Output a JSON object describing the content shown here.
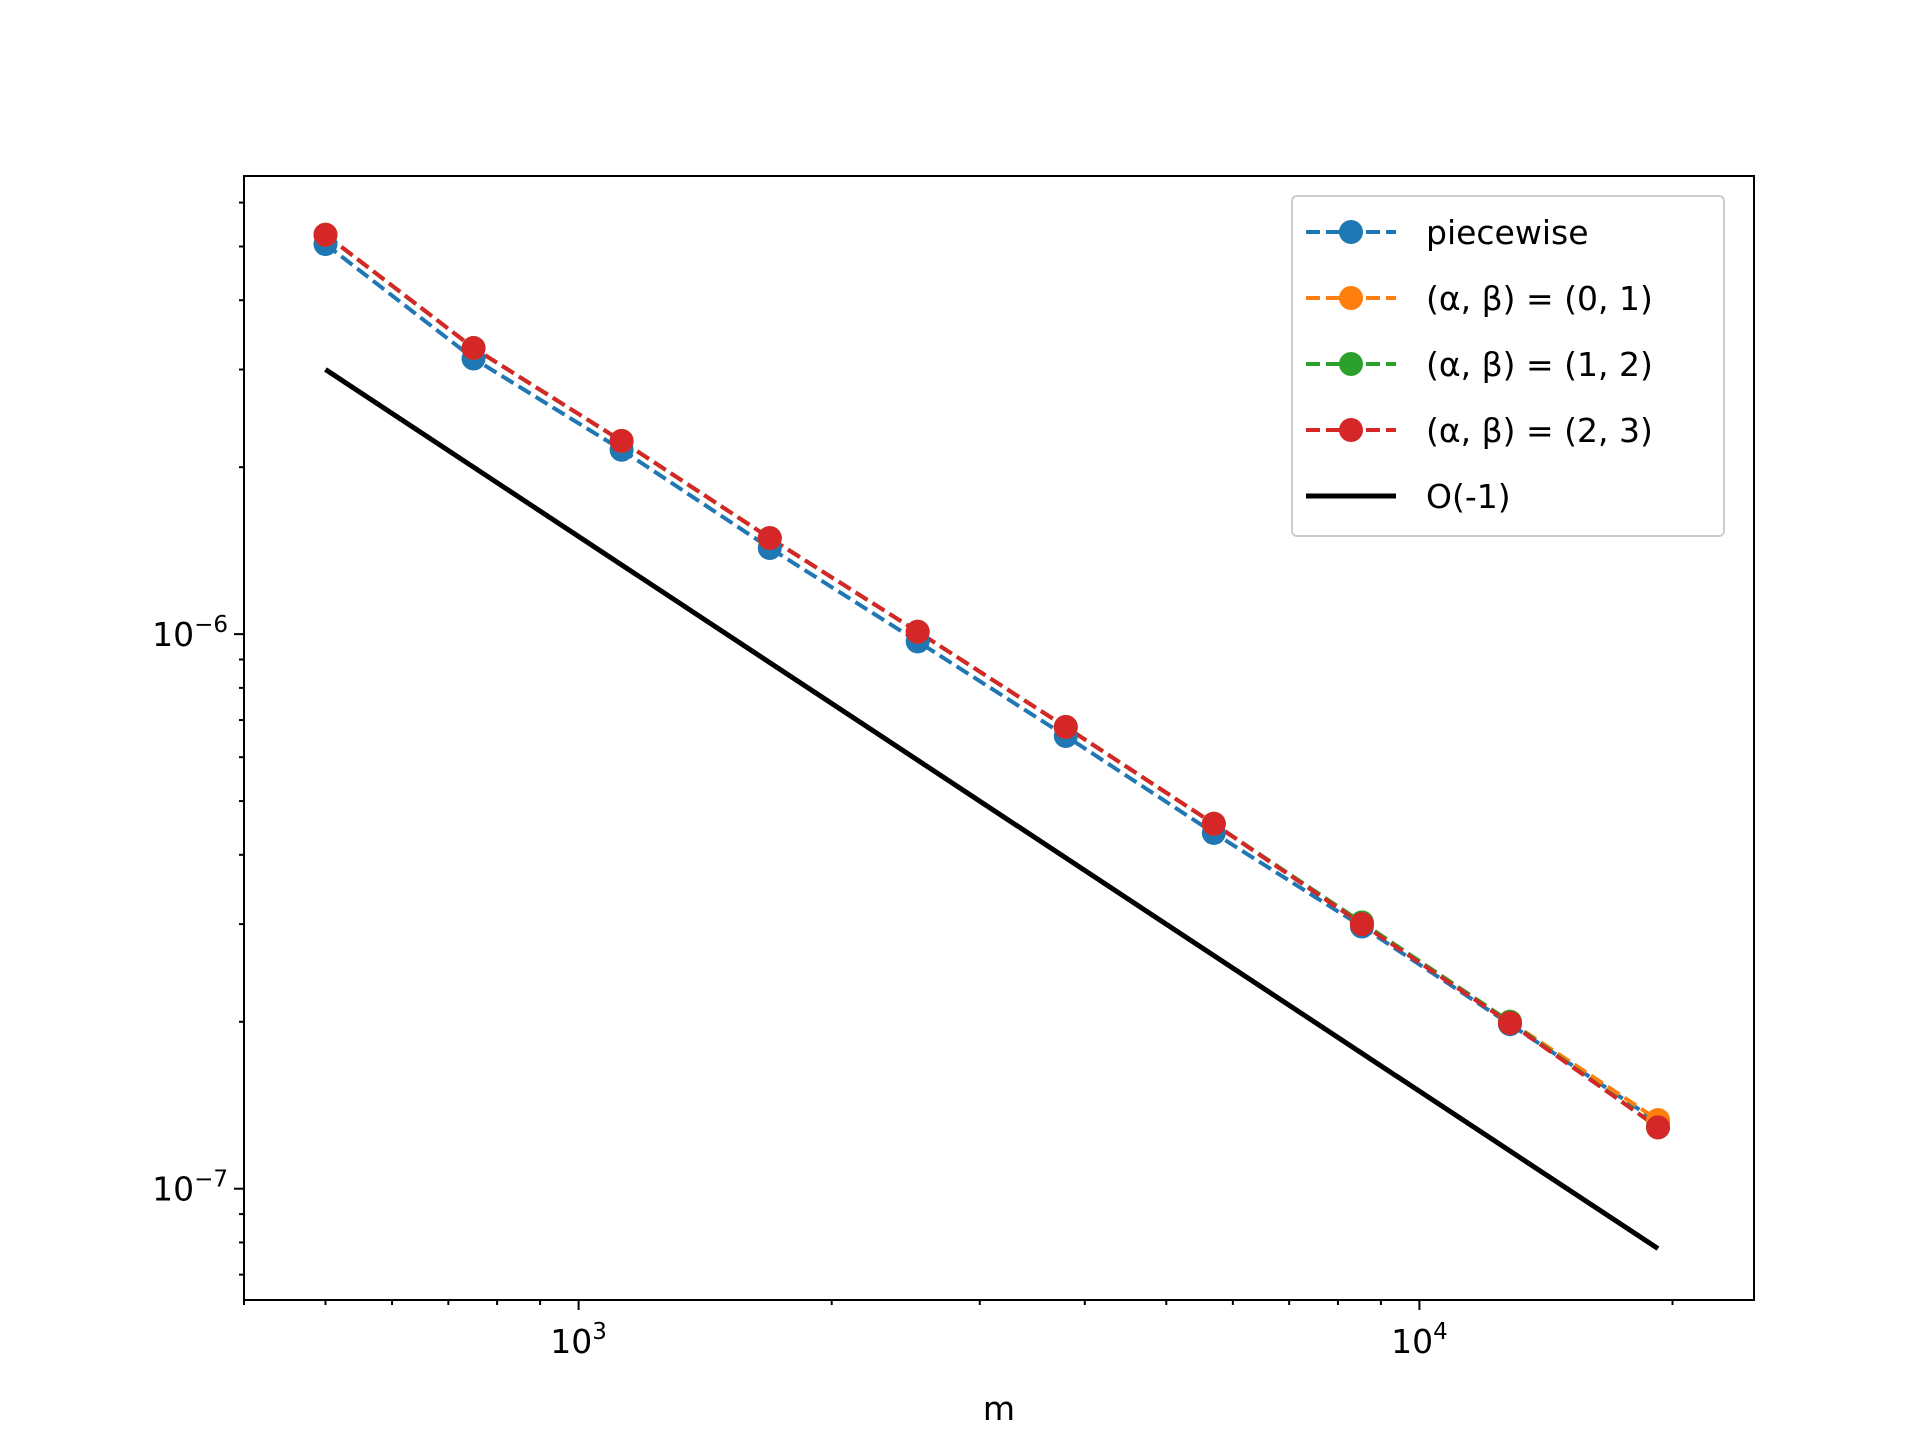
{
  "chart_data": {
    "type": "line",
    "title": "",
    "xlabel": "m",
    "ylabel": "",
    "xscale": "log",
    "yscale": "log",
    "xlim": [
      400,
      25000
    ],
    "ylim": [
      6.3e-08,
      6.7e-06
    ],
    "grid": false,
    "legend_position": "top-right",
    "x_tick_labels": [
      {
        "value": 1000,
        "base": "10",
        "exp": "3"
      },
      {
        "value": 10000,
        "base": "10",
        "exp": "4"
      }
    ],
    "y_tick_labels": [
      {
        "value": 1e-07,
        "base": "10",
        "exp": "−7"
      },
      {
        "value": 1e-06,
        "base": "10",
        "exp": "−6"
      }
    ],
    "x": [
      500,
      750,
      1125,
      1688,
      2531,
      3797,
      5695,
      8543,
      12814,
      19221
    ],
    "series": [
      {
        "name": "piecewise",
        "color": "#1f77b4",
        "style": "dashed-marker",
        "values": [
          5.05e-06,
          3.14e-06,
          2.15e-06,
          1.43e-06,
          9.7e-07,
          6.55e-07,
          4.38e-07,
          2.97e-07,
          1.98e-07,
          1.32e-07
        ]
      },
      {
        "name": "(α, β) = (0, 1)",
        "color": "#ff7f0e",
        "style": "dashed-marker",
        "values": [
          5.25e-06,
          3.28e-06,
          2.23e-06,
          1.49e-06,
          1.01e-06,
          6.8e-07,
          4.55e-07,
          3.02e-07,
          2e-07,
          1.33e-07
        ]
      },
      {
        "name": "(α, β) = (1, 2)",
        "color": "#2ca02c",
        "style": "dashed-marker",
        "values": [
          5.25e-06,
          3.28e-06,
          2.23e-06,
          1.49e-06,
          1.01e-06,
          6.8e-07,
          4.55e-07,
          3.02e-07,
          2e-07,
          1.29e-07
        ]
      },
      {
        "name": "(α, β) = (2, 3)",
        "color": "#d62728",
        "style": "dashed-marker",
        "values": [
          5.25e-06,
          3.28e-06,
          2.23e-06,
          1.49e-06,
          1.01e-06,
          6.8e-07,
          4.55e-07,
          3e-07,
          1.99e-07,
          1.29e-07
        ]
      },
      {
        "name": "O(-1)",
        "color": "#000000",
        "style": "solid",
        "x": [
          500,
          19221
        ],
        "values": [
          3e-06,
          7.8e-08
        ]
      }
    ]
  }
}
